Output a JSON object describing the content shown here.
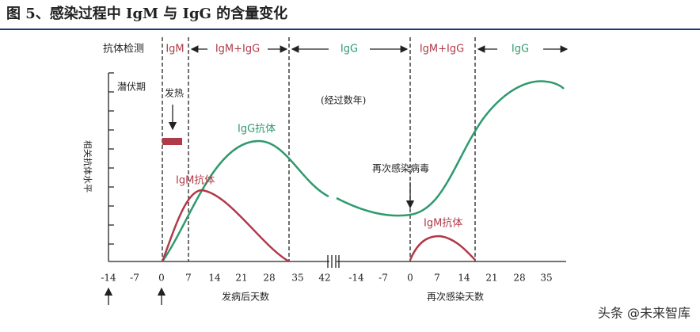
{
  "title": "图 5、感染过程中 IgM 与 IgG 的含量变化",
  "header": {
    "label": "抗体检测",
    "phases": [
      "IgM",
      "IgM+IgG",
      "IgG",
      "IgM+IgG",
      "IgG"
    ]
  },
  "annotations": {
    "incubation": "潜伏期",
    "fever": "发热",
    "years": "(经过数年)",
    "igg_antibody": "IgG抗体",
    "igm_antibody": "IgM抗体",
    "reinfection": "再次感染病毒",
    "igm_antibody_2": "IgM抗体"
  },
  "y_axis_label": "相关抗体水平",
  "x_axis_1": {
    "label": "发病后天数",
    "ticks": [
      -14,
      -7,
      0,
      7,
      14,
      21,
      28,
      35,
      42
    ]
  },
  "x_axis_2": {
    "label": "再次感染天数",
    "ticks": [
      -14,
      -7,
      0,
      7,
      14,
      21,
      28,
      35
    ]
  },
  "watermark": "头条 @未来智库"
}
